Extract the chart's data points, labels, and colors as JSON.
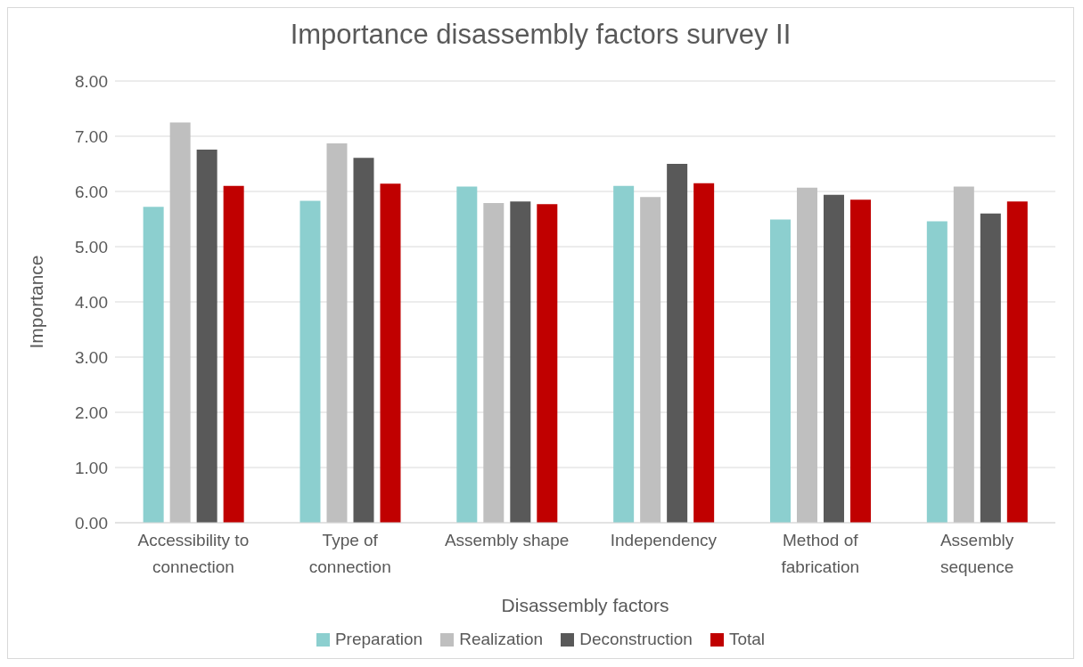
{
  "chart_data": {
    "type": "bar",
    "title": "Importance disassembly factors survey II",
    "xlabel": "Disassembly factors",
    "ylabel": "Importance",
    "categories": [
      "Accessibility to connection",
      "Type of connection",
      "Assembly shape",
      "Independency",
      "Method of fabrication",
      "Assembly sequence"
    ],
    "series": [
      {
        "name": "Preparation",
        "color": "#8ccfcf",
        "values": [
          5.72,
          5.83,
          6.09,
          6.1,
          5.49,
          5.46
        ]
      },
      {
        "name": "Realization",
        "color": "#bfbfbf",
        "values": [
          7.25,
          6.87,
          5.79,
          5.9,
          6.07,
          6.09
        ]
      },
      {
        "name": "Deconstruction",
        "color": "#595959",
        "values": [
          6.76,
          6.61,
          5.82,
          6.5,
          5.94,
          5.6
        ]
      },
      {
        "name": "Total",
        "color": "#c00000",
        "values": [
          6.1,
          6.14,
          5.77,
          6.15,
          5.85,
          5.82
        ]
      }
    ],
    "ylim": [
      0,
      8
    ],
    "yticks": [
      {
        "value": 0,
        "label": "0.00"
      },
      {
        "value": 1,
        "label": "1.00"
      },
      {
        "value": 2,
        "label": "2.00"
      },
      {
        "value": 3,
        "label": "3.00"
      },
      {
        "value": 4,
        "label": "4.00"
      },
      {
        "value": 5,
        "label": "5.00"
      },
      {
        "value": 6,
        "label": "6.00"
      },
      {
        "value": 7,
        "label": "7.00"
      },
      {
        "value": 8,
        "label": "8.00"
      }
    ],
    "grid": "y",
    "legend": "bottom"
  }
}
